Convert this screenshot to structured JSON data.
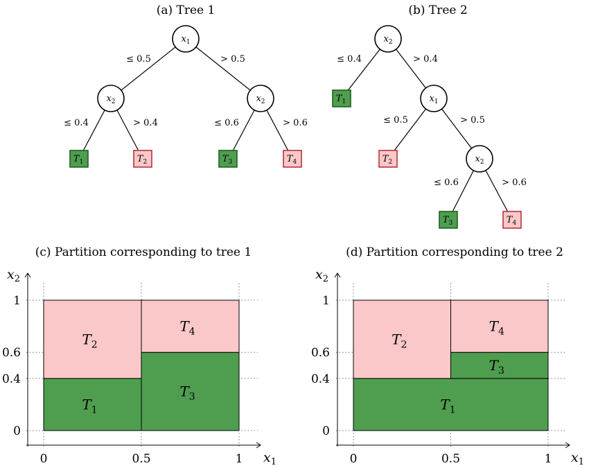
{
  "tree1": {
    "caption": "(a) Tree 1",
    "nodes": {
      "root": {
        "var": "x",
        "sub": "1"
      },
      "left": {
        "var": "x",
        "sub": "2"
      },
      "right": {
        "var": "x",
        "sub": "2"
      }
    },
    "edges": {
      "root_left": "≤ 0.5",
      "root_right": "> 0.5",
      "left_left": "≤ 0.4",
      "left_right": "> 0.4",
      "right_left": "≤ 0.6",
      "right_right": "> 0.6"
    },
    "leaves": [
      {
        "var": "T",
        "sub": "1",
        "class": "green"
      },
      {
        "var": "T",
        "sub": "2",
        "class": "pink"
      },
      {
        "var": "T",
        "sub": "3",
        "class": "green"
      },
      {
        "var": "T",
        "sub": "4",
        "class": "pink"
      }
    ]
  },
  "tree2": {
    "caption": "(b) Tree 2",
    "nodes": {
      "root": {
        "var": "x",
        "sub": "2"
      },
      "mid": {
        "var": "x",
        "sub": "1"
      },
      "low": {
        "var": "x",
        "sub": "2"
      }
    },
    "edges": {
      "root_left": "≤ 0.4",
      "root_right": "> 0.4",
      "mid_left": "≤ 0.5",
      "mid_right": "> 0.5",
      "low_left": "≤ 0.6",
      "low_right": "> 0.6"
    },
    "leaves": [
      {
        "var": "T",
        "sub": "1",
        "class": "green"
      },
      {
        "var": "T",
        "sub": "2",
        "class": "pink"
      },
      {
        "var": "T",
        "sub": "3",
        "class": "green"
      },
      {
        "var": "T",
        "sub": "4",
        "class": "pink"
      }
    ]
  },
  "partition1": {
    "caption": "(c) Partition corresponding to tree 1",
    "xlabel": {
      "var": "x",
      "sub": "1"
    },
    "ylabel": {
      "var": "x",
      "sub": "2"
    },
    "xticks": [
      "0",
      "0.5",
      "1"
    ],
    "yticks": [
      "0",
      "0.4",
      "0.6",
      "1"
    ],
    "regions": [
      {
        "var": "T",
        "sub": "1",
        "class": "green",
        "x": [
          0,
          0.5
        ],
        "y": [
          0,
          0.4
        ]
      },
      {
        "var": "T",
        "sub": "2",
        "class": "pink",
        "x": [
          0,
          0.5
        ],
        "y": [
          0.4,
          1
        ]
      },
      {
        "var": "T",
        "sub": "3",
        "class": "green",
        "x": [
          0.5,
          1
        ],
        "y": [
          0,
          0.6
        ]
      },
      {
        "var": "T",
        "sub": "4",
        "class": "pink",
        "x": [
          0.5,
          1
        ],
        "y": [
          0.6,
          1
        ]
      }
    ]
  },
  "partition2": {
    "caption": "(d) Partition corresponding to tree 2",
    "xlabel": {
      "var": "x",
      "sub": "1"
    },
    "ylabel": {
      "var": "x",
      "sub": "2"
    },
    "xticks": [
      "0",
      "0.5",
      "1"
    ],
    "yticks": [
      "0",
      "0.4",
      "0.6",
      "1"
    ],
    "regions": [
      {
        "var": "T",
        "sub": "1",
        "class": "green",
        "x": [
          0,
          1
        ],
        "y": [
          0,
          0.4
        ]
      },
      {
        "var": "T",
        "sub": "2",
        "class": "pink",
        "x": [
          0,
          0.5
        ],
        "y": [
          0.4,
          1
        ]
      },
      {
        "var": "T",
        "sub": "3",
        "class": "green",
        "x": [
          0.5,
          1
        ],
        "y": [
          0.4,
          0.6
        ]
      },
      {
        "var": "T",
        "sub": "4",
        "class": "pink",
        "x": [
          0.5,
          1
        ],
        "y": [
          0.6,
          1
        ]
      }
    ]
  },
  "colors": {
    "green": "#4f9e50",
    "pink": "#fbc8c9",
    "green_border": "#1f5f22",
    "pink_border": "#b8323a"
  }
}
